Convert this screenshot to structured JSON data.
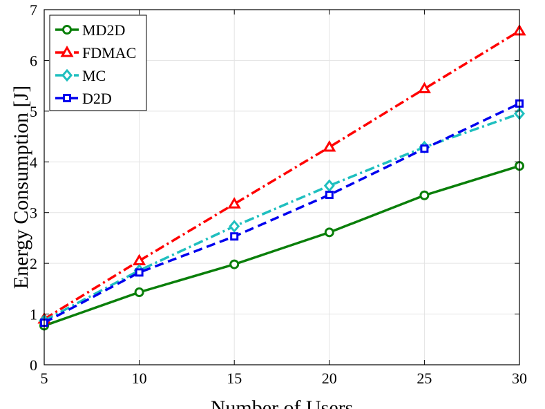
{
  "chart_data": {
    "type": "line",
    "title": "",
    "xlabel": "Number of Users",
    "ylabel": "Energy Consumption [J]",
    "x": [
      5,
      10,
      15,
      20,
      25,
      30
    ],
    "xlim": [
      5,
      30
    ],
    "ylim": [
      0,
      7
    ],
    "xticks": [
      "5",
      "10",
      "15",
      "20",
      "25",
      "30"
    ],
    "yticks": [
      "0",
      "1",
      "2",
      "3",
      "4",
      "5",
      "6",
      "7"
    ],
    "grid": true,
    "legend_position": "top-left",
    "series": [
      {
        "name": "MD2D",
        "values": [
          0.77,
          1.43,
          1.98,
          2.61,
          3.34,
          3.92
        ],
        "color": "#0a7f0a",
        "marker": "circle",
        "dash": "solid"
      },
      {
        "name": "FDMAC",
        "values": [
          0.9,
          2.05,
          3.17,
          4.29,
          5.44,
          6.58
        ],
        "color": "#ff0000",
        "marker": "triangle",
        "dash": "dashdot"
      },
      {
        "name": "MC",
        "values": [
          0.87,
          1.86,
          2.73,
          3.53,
          4.29,
          4.95
        ],
        "color": "#1fbfbf",
        "marker": "diamond",
        "dash": "dashdot"
      },
      {
        "name": "D2D",
        "values": [
          0.83,
          1.82,
          2.53,
          3.35,
          4.26,
          5.15
        ],
        "color": "#0000ee",
        "marker": "square",
        "dash": "dashed"
      }
    ]
  }
}
